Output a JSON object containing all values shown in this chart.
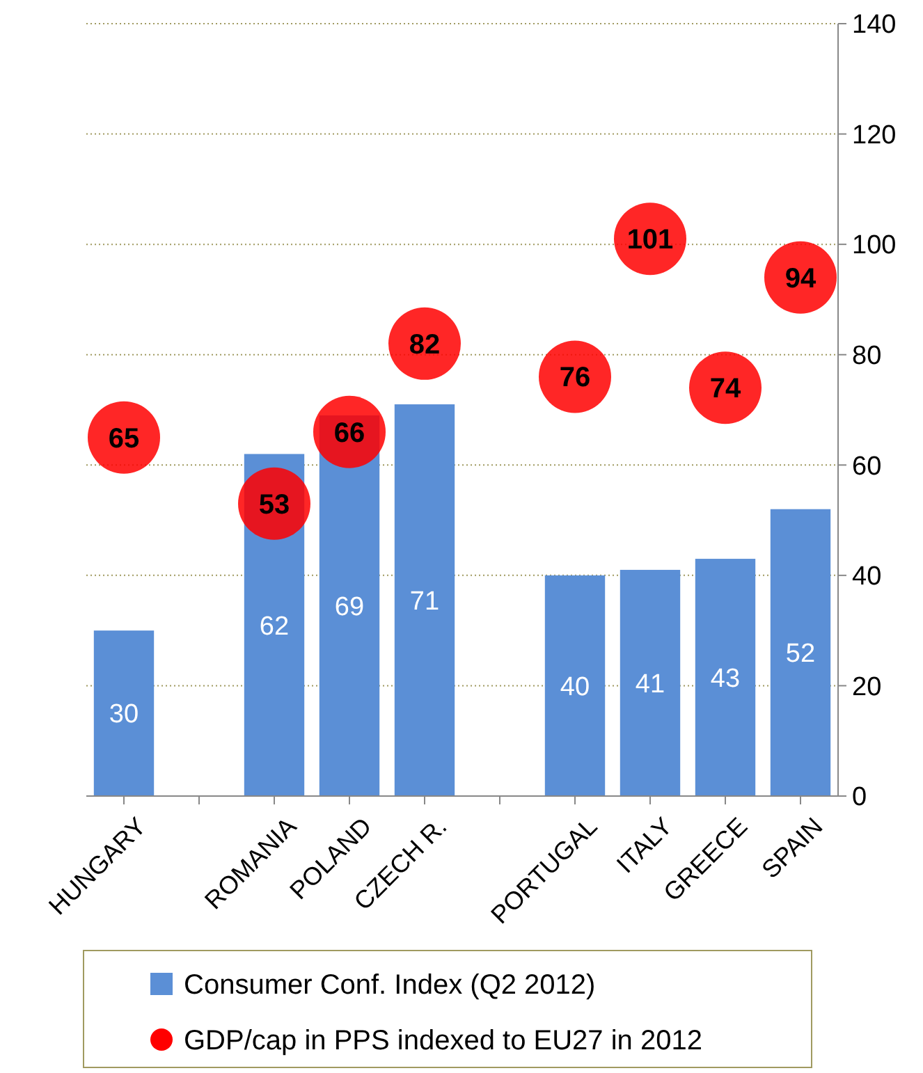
{
  "chart_data": {
    "type": "bar",
    "categories": [
      "HUNGARY",
      null,
      "ROMANIA",
      "POLAND",
      "CZECH R.",
      null,
      "PORTUGAL",
      "ITALY",
      "GREECE",
      "SPAIN"
    ],
    "series": [
      {
        "name": "Consumer Conf. Index (Q2 2012)",
        "type": "bar",
        "color": "#5b8fd6",
        "values": [
          30,
          null,
          62,
          69,
          71,
          null,
          40,
          41,
          43,
          52
        ]
      },
      {
        "name": "GDP/cap in PPS indexed to EU27 in 2012",
        "type": "scatter",
        "color": "#ff0000",
        "x": [
          "HUNGARY",
          "ROMANIA",
          "POLAND",
          "CZECH R.",
          "PORTUGAL",
          "ITALY",
          "GREECE",
          "SPAIN"
        ],
        "values": [
          65,
          53,
          66,
          82,
          76,
          101,
          74,
          94
        ]
      }
    ],
    "ylim": [
      0,
      140
    ],
    "yticks": [
      0,
      20,
      40,
      60,
      80,
      100,
      120,
      140
    ],
    "grid": "y",
    "legend": "bottom",
    "data_labels": true,
    "marker": "circle"
  }
}
